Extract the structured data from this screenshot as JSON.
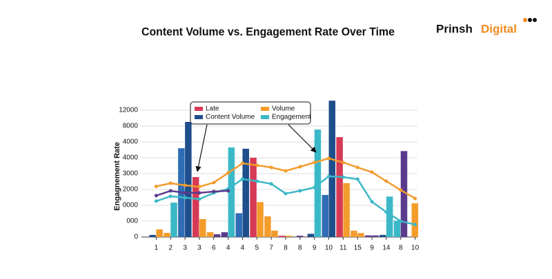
{
  "chart_data": {
    "type": "bar",
    "title": "Content Volume vs. Engagement Rate Over Time",
    "y_label": "Engagnement Rate",
    "categories": [
      "1",
      "2",
      "3",
      "3",
      "6",
      "4",
      "4",
      "5",
      "7",
      "8",
      "8",
      "9",
      "10",
      "11",
      "15",
      "9",
      "14",
      "8",
      "10"
    ],
    "ylim": [
      0,
      8650
    ],
    "yticks": [
      0,
      {
        "value": 1000,
        "label": "000"
      },
      {
        "value": 2000,
        "label": "0000"
      },
      {
        "value": 3000,
        "label": "2000"
      },
      {
        "value": 4000,
        "label": "3000"
      },
      {
        "value": 5000,
        "label": "4000"
      },
      {
        "value": 6000,
        "label": "4000"
      },
      {
        "value": 7000,
        "label": "8000"
      },
      {
        "value": 8000,
        "label": "12000"
      }
    ],
    "grid": true,
    "series": [
      {
        "color": "#2f6db5",
        "values": [
          null,
          null,
          5600,
          null,
          null,
          null,
          1500,
          null,
          null,
          null,
          null,
          null,
          2650,
          null,
          null,
          null,
          null,
          null,
          null
        ]
      },
      {
        "name": "Late",
        "color": "#d63a55",
        "values": [
          null,
          null,
          null,
          3780,
          null,
          null,
          null,
          5000,
          null,
          80,
          null,
          null,
          null,
          6300,
          null,
          null,
          null,
          null,
          null
        ]
      },
      {
        "name": "Content Volume",
        "color": "#1f4e8c",
        "values": [
          130,
          null,
          7260,
          null,
          null,
          null,
          5570,
          null,
          null,
          null,
          null,
          200,
          8600,
          null,
          null,
          null,
          130,
          null,
          null
        ]
      },
      {
        "name": "Volume",
        "color": "#f39c2b",
        "values": [
          480,
          260,
          null,
          1130,
          300,
          null,
          null,
          2200,
          1300,
          80,
          null,
          null,
          null,
          3400,
          400,
          null,
          null,
          null,
          2130
        ]
      },
      {
        "color": "#f39c2b",
        "values": [
          null,
          null,
          null,
          null,
          null,
          null,
          null,
          null,
          400,
          null,
          null,
          null,
          null,
          null,
          250,
          null,
          null,
          null,
          null
        ]
      },
      {
        "color": "#5b3a8c",
        "values": [
          null,
          null,
          null,
          null,
          170,
          300,
          null,
          null,
          null,
          null,
          80,
          null,
          null,
          null,
          null,
          100,
          null,
          null,
          null
        ]
      },
      {
        "name": "Engagement",
        "color": "#3bb8c8",
        "values": [
          null,
          2170,
          null,
          null,
          null,
          5650,
          null,
          null,
          null,
          null,
          null,
          6780,
          null,
          null,
          null,
          null,
          2550,
          1030,
          null
        ]
      },
      {
        "color": "#5b3a8c",
        "values": [
          null,
          null,
          null,
          null,
          null,
          null,
          null,
          null,
          null,
          null,
          null,
          null,
          null,
          null,
          null,
          100,
          null,
          5420,
          null
        ]
      }
    ],
    "lines": [
      {
        "color": "#f39c2b",
        "values": [
          3190,
          3390,
          3260,
          3170,
          3430,
          4040,
          4650,
          4520,
          4390,
          4170,
          4430,
          4700,
          4960,
          4700,
          4390,
          4090,
          3520,
          2960,
          2430
        ]
      },
      {
        "color": "#3bb8c8",
        "values": [
          2260,
          2570,
          2480,
          2390,
          2780,
          3040,
          3650,
          3520,
          3350,
          2740,
          2910,
          3130,
          3830,
          3780,
          3650,
          2220,
          1570,
          1000,
          780
        ]
      },
      {
        "color": "#5b3a8c",
        "values": [
          2610,
          2910,
          2780,
          2780,
          2870,
          2910,
          null,
          null,
          null,
          null,
          null,
          null,
          null,
          null,
          null,
          null,
          null,
          null,
          null
        ]
      }
    ]
  },
  "logo": {
    "first": "Prinsh",
    "second": "Digital"
  }
}
